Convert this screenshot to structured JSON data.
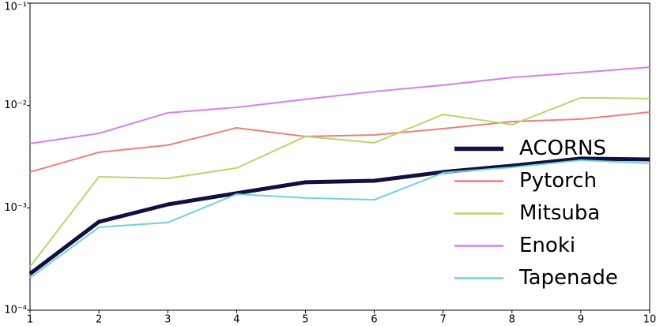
{
  "chart_data": {
    "type": "line",
    "x": [
      1,
      2,
      3,
      4,
      5,
      6,
      7,
      8,
      9,
      10
    ],
    "xlim": [
      1,
      10
    ],
    "xticks": [
      1,
      2,
      3,
      4,
      5,
      6,
      7,
      8,
      9,
      10
    ],
    "ylim": [
      0.0001,
      0.1
    ],
    "log_y": true,
    "yticks": [
      {
        "value": 0.0001,
        "label": "10⁻⁴"
      },
      {
        "value": 0.001,
        "label": "10⁻³"
      },
      {
        "value": 0.01,
        "label": "10⁻²"
      },
      {
        "value": 0.1,
        "label": "10⁻¹"
      }
    ],
    "grid": false,
    "legend": "center right",
    "series": [
      {
        "name": "ACORNS",
        "color": "#12103f",
        "linewidth": 5,
        "values": [
          0.000227,
          0.00073,
          0.00108,
          0.00139,
          0.00178,
          0.00184,
          0.00224,
          0.00258,
          0.00303,
          0.00297
        ]
      },
      {
        "name": "Pytorch",
        "color": "#f47c7c",
        "linewidth": 2,
        "values": [
          0.00224,
          0.00349,
          0.0041,
          0.00605,
          0.00498,
          0.00515,
          0.00594,
          0.00697,
          0.00736,
          0.00863
        ]
      },
      {
        "name": "Mitsuba",
        "color": "#b5d86a",
        "linewidth": 2,
        "values": [
          0.000266,
          0.00201,
          0.00194,
          0.00245,
          0.00498,
          0.00432,
          0.00818,
          0.0065,
          0.0119,
          0.0117
        ]
      },
      {
        "name": "Enoki",
        "color": "#d97df5",
        "linewidth": 2,
        "values": [
          0.00425,
          0.00534,
          0.00848,
          0.0096,
          0.0115,
          0.0137,
          0.0158,
          0.0188,
          0.021,
          0.0237
        ]
      },
      {
        "name": "Tapenade",
        "color": "#72d1da",
        "linewidth": 2,
        "values": [
          0.000207,
          0.000646,
          0.000719,
          0.00136,
          0.00125,
          0.0012,
          0.0022,
          0.00249,
          0.00292,
          0.00272
        ]
      }
    ]
  }
}
